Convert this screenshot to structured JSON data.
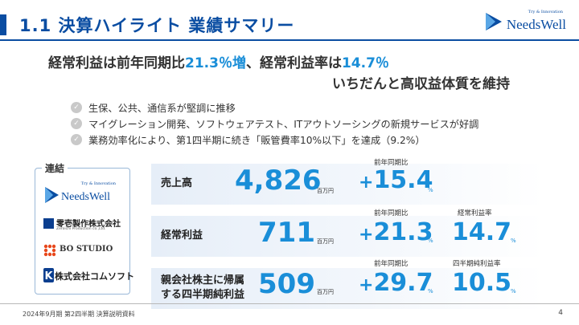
{
  "header": {
    "title": "1.1  決算ハイライト  業績サマリー",
    "logo": {
      "tagline": "Try & Innovation",
      "name": "NeedsWell",
      "icon": "needswell-triangle-icon"
    }
  },
  "headline": {
    "line1_pre": "経常利益は前年同期比",
    "line1_hl1": "21.3％増",
    "line1_mid": "、経常利益率は",
    "line1_hl2": "14.7％",
    "line2": "いちだんと高収益体質を維持"
  },
  "bullets": [
    "生保、公共、通信系が堅調に推移",
    "マイグレーション開発、ソフトウェアテスト、ITアウトソーシングの新規サービスが好調",
    "業務効率化により、第1四半期に続き「販管費率10%以下」を達成（9.2%）"
  ],
  "consolidated": {
    "label": "連結",
    "companies": [
      {
        "tagline": "Try & Innovation",
        "name": "NeedsWell"
      },
      {
        "name": "零壱製作株式会社",
        "sub": "Zeroichi Production co.,Ltd."
      },
      {
        "name": "BO STUDIO"
      },
      {
        "name": "株式会社コムソフト"
      }
    ]
  },
  "kpis": [
    {
      "label": "売上高",
      "value": "4,826",
      "unit": "百万円",
      "growth_label": "前年同期比",
      "growth_sign": "+",
      "growth": "15.4",
      "growth_unit": "%"
    },
    {
      "label": "経常利益",
      "value": "711",
      "unit": "百万円",
      "growth_label": "前年同期比",
      "growth_sign": "+",
      "growth": "21.3",
      "growth_unit": "%",
      "ratio_label": "経常利益率",
      "ratio": "14.7",
      "ratio_unit": "%"
    },
    {
      "label_line1": "親会社株主に帰属",
      "label_line2": "する四半期純利益",
      "value": "509",
      "unit": "百万円",
      "growth_label": "前年同期比",
      "growth_sign": "+",
      "growth": "29.7",
      "growth_unit": "%",
      "ratio_label": "四半期純利益率",
      "ratio": "10.5",
      "ratio_unit": "%"
    }
  ],
  "footer": {
    "text": "2024年9月期 第2四半期 決算説明資料",
    "page": "4"
  },
  "colors": {
    "brand_blue": "#0a4da2",
    "accent": "#1a8ed8"
  }
}
